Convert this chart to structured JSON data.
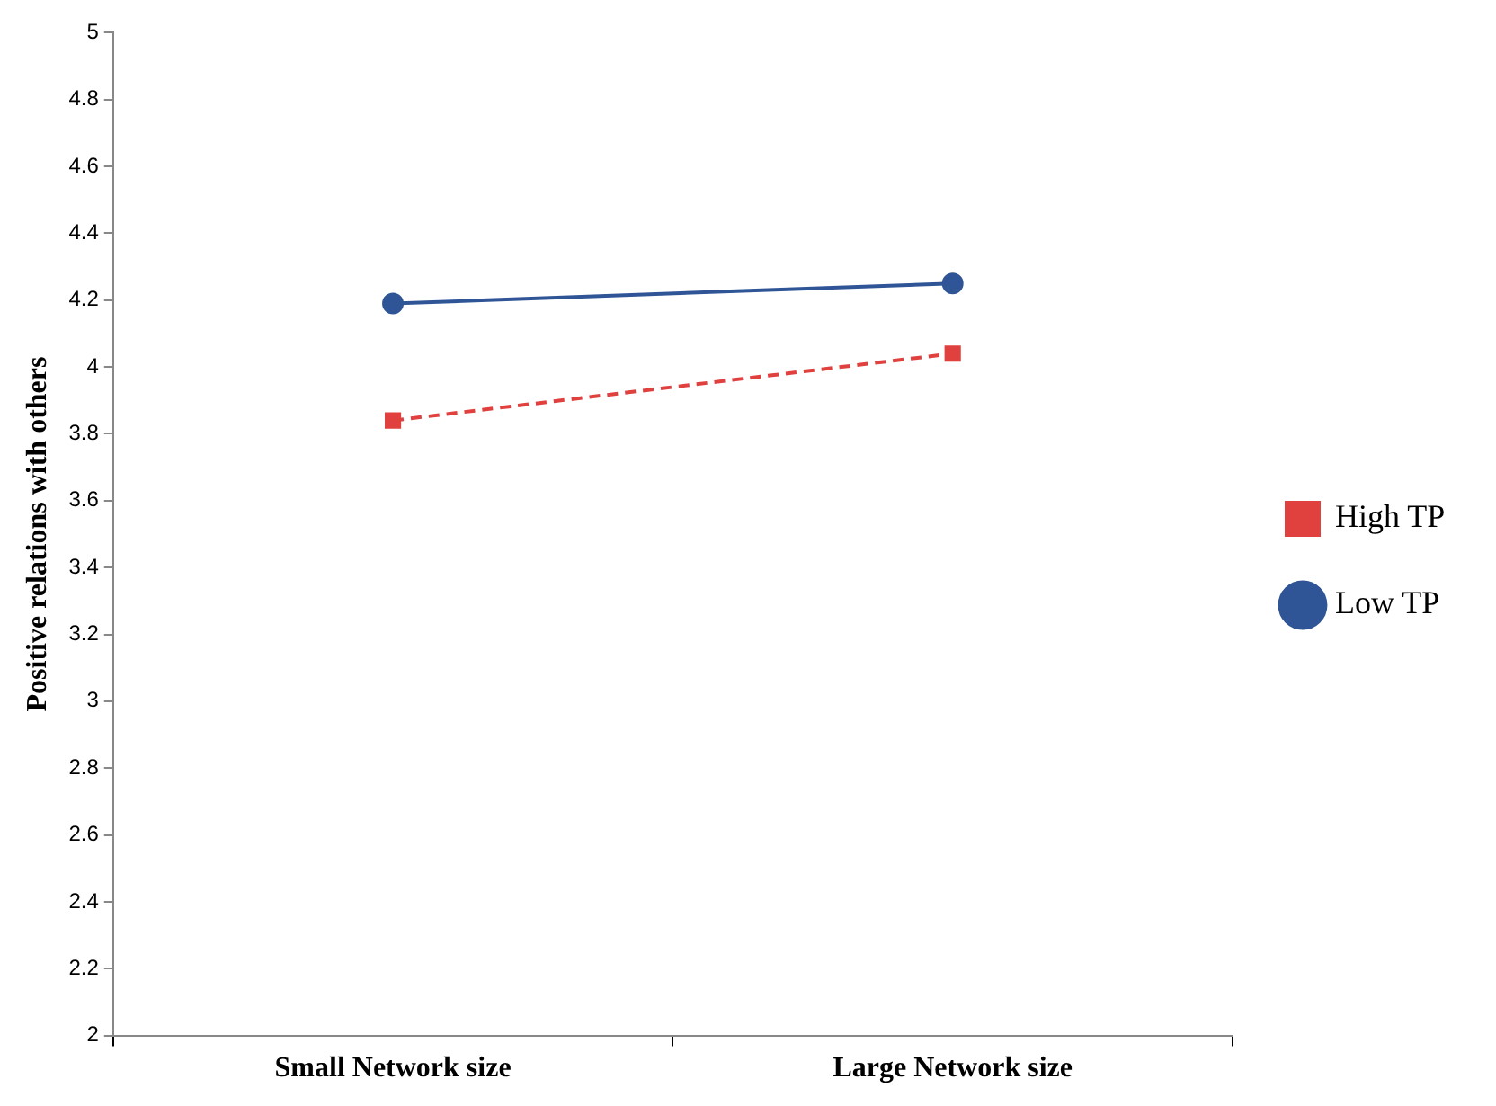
{
  "chart_data": {
    "type": "line",
    "ylabel": "Positive relations with others",
    "categories": [
      "Small Network size",
      "Large Network size"
    ],
    "series": [
      {
        "name": "High TP",
        "color": "#e0403e",
        "values": [
          3.84,
          4.04
        ],
        "marker": "square",
        "line_style": "dashed"
      },
      {
        "name": "Low TP",
        "color": "#2f5597",
        "values": [
          4.19,
          4.25
        ],
        "marker": "circle",
        "line_style": "solid"
      }
    ],
    "ylim": [
      2,
      5
    ],
    "yticks": [
      2,
      2.2,
      2.4,
      2.6,
      2.8,
      3,
      3.2,
      3.4,
      3.6,
      3.8,
      4,
      4.2,
      4.4,
      4.6,
      4.8,
      5
    ],
    "grid": false,
    "legend": "right"
  }
}
